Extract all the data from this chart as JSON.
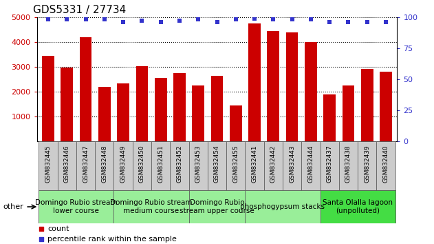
{
  "title": "GDS5331 / 27734",
  "samples": [
    "GSM832445",
    "GSM832446",
    "GSM832447",
    "GSM832448",
    "GSM832449",
    "GSM832450",
    "GSM832451",
    "GSM832452",
    "GSM832453",
    "GSM832454",
    "GSM832455",
    "GSM832441",
    "GSM832442",
    "GSM832443",
    "GSM832444",
    "GSM832437",
    "GSM832438",
    "GSM832439",
    "GSM832440"
  ],
  "counts": [
    3450,
    2970,
    4200,
    2200,
    2340,
    3030,
    2550,
    2750,
    2240,
    2640,
    1450,
    4750,
    4450,
    4390,
    4000,
    1880,
    2240,
    2920,
    2800
  ],
  "percentile": [
    98,
    98,
    98,
    98,
    96,
    97,
    96,
    97,
    98,
    96,
    98,
    99,
    98,
    98,
    98,
    96,
    96,
    96,
    96
  ],
  "bar_color": "#cc0000",
  "dot_color": "#3333cc",
  "ylim_left": [
    0,
    5000
  ],
  "ylim_right": [
    0,
    100
  ],
  "yticks_left": [
    1000,
    2000,
    3000,
    4000,
    5000
  ],
  "yticks_right": [
    0,
    25,
    50,
    75,
    100
  ],
  "groups": [
    {
      "label": "Domingo Rubio stream\nlower course",
      "start": 0,
      "end": 4,
      "color": "#99ee99"
    },
    {
      "label": "Domingo Rubio stream\nmedium course",
      "start": 4,
      "end": 8,
      "color": "#99ee99"
    },
    {
      "label": "Domingo Rubio\nstream upper course",
      "start": 8,
      "end": 11,
      "color": "#99ee99"
    },
    {
      "label": "phosphogypsum stacks",
      "start": 11,
      "end": 15,
      "color": "#99ee99"
    },
    {
      "label": "Santa Olalla lagoon\n(unpolluted)",
      "start": 15,
      "end": 19,
      "color": "#44dd44"
    }
  ],
  "other_label": "other",
  "legend_count_color": "#cc0000",
  "legend_dot_color": "#3333cc",
  "bg_color": "#ffffff",
  "xticklabel_bg": "#cccccc",
  "title_fontsize": 11,
  "axis_fontsize": 8,
  "group_fontsize": 7.5
}
